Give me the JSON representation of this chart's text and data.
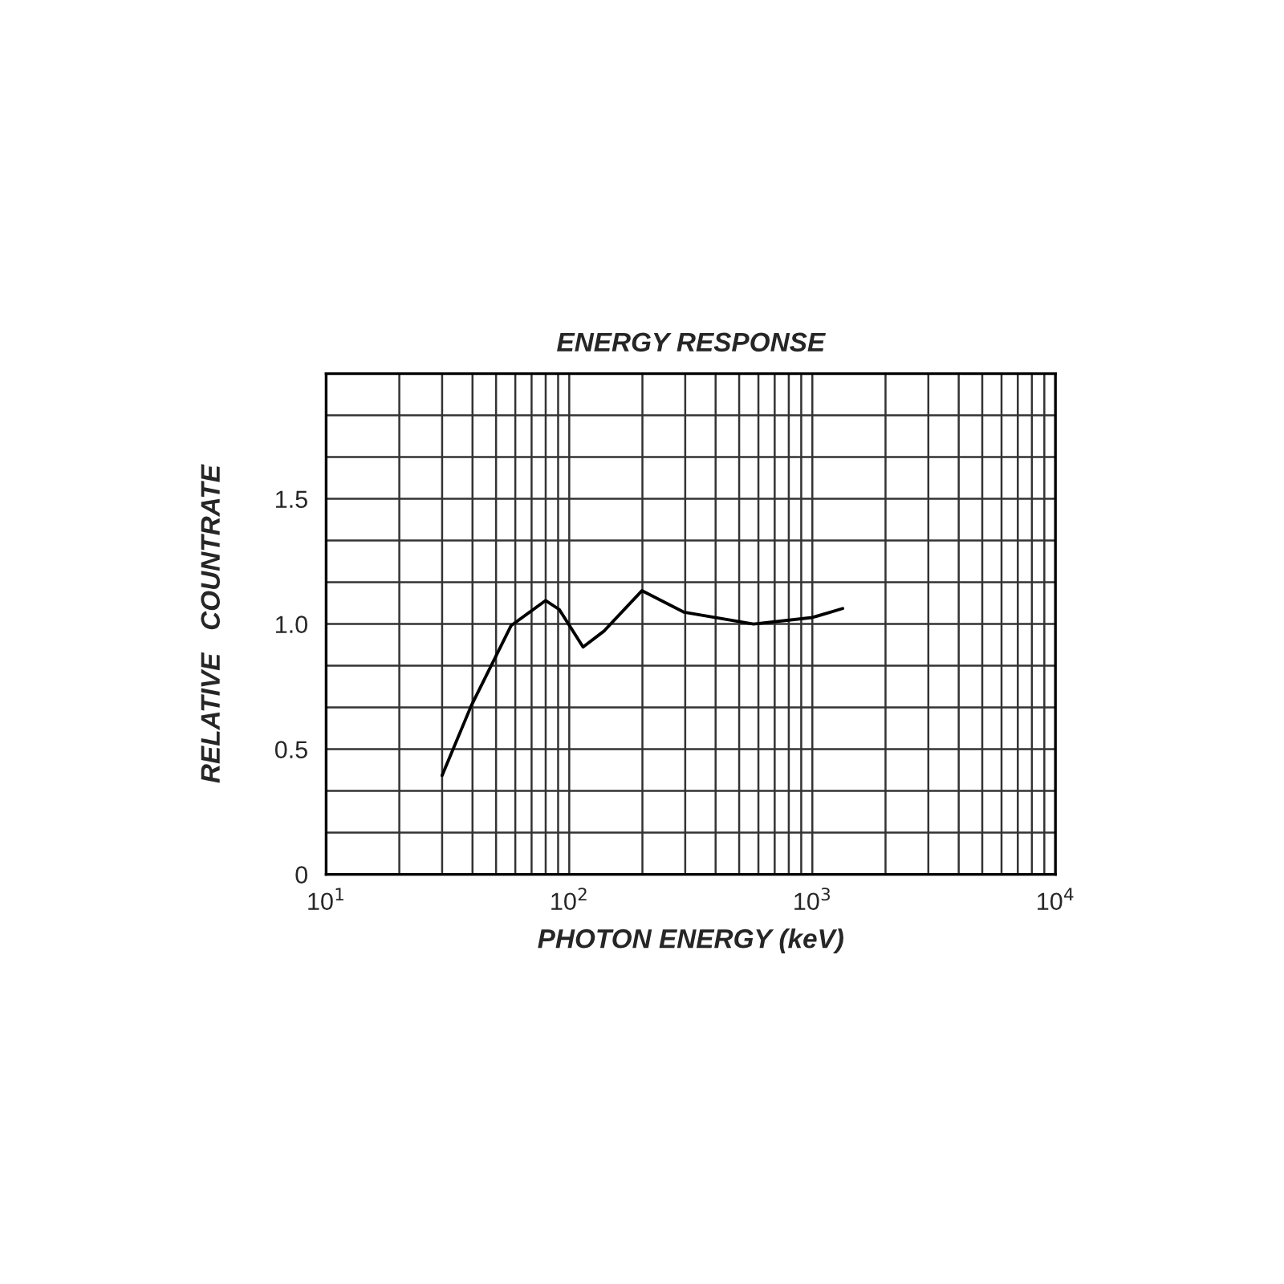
{
  "chart_data": {
    "type": "line",
    "title": "ENERGY RESPONSE",
    "xlabel": "PHOTON ENERGY (keV)",
    "ylabel": "RELATIVE   COUNTRATE",
    "x": [
      30,
      39.5,
      57.7,
      80,
      91,
      114,
      139,
      199,
      297,
      573,
      1000,
      1333
    ],
    "series": [
      {
        "color": "#000000",
        "values": [
          0.395,
          0.673,
          0.994,
          1.094,
          1.058,
          0.908,
          0.972,
          1.133,
          1.047,
          1.0,
          1.026,
          1.062
        ]
      }
    ],
    "log": "x",
    "xlim": [
      10,
      10000
    ],
    "ylim": [
      0,
      2.0
    ],
    "xticks": [
      {
        "value": 10,
        "label": "10$^{1}$"
      },
      {
        "value": 20,
        "label": null
      },
      {
        "value": 30,
        "label": null
      },
      {
        "value": 40,
        "label": null
      },
      {
        "value": 50,
        "label": null
      },
      {
        "value": 60,
        "label": null
      },
      {
        "value": 70,
        "label": null
      },
      {
        "value": 80,
        "label": null
      },
      {
        "value": 90,
        "label": null
      },
      {
        "value": 100,
        "label": "10$^{2}$"
      },
      {
        "value": 200,
        "label": null
      },
      {
        "value": 300,
        "label": null
      },
      {
        "value": 400,
        "label": null
      },
      {
        "value": 500,
        "label": null
      },
      {
        "value": 600,
        "label": null
      },
      {
        "value": 700,
        "label": null
      },
      {
        "value": 800,
        "label": null
      },
      {
        "value": 900,
        "label": null
      },
      {
        "value": 1000,
        "label": "10$^{3}$"
      },
      {
        "value": 2000,
        "label": null
      },
      {
        "value": 3000,
        "label": null
      },
      {
        "value": 4000,
        "label": null
      },
      {
        "value": 5000,
        "label": null
      },
      {
        "value": 6000,
        "label": null
      },
      {
        "value": 7000,
        "label": null
      },
      {
        "value": 8000,
        "label": null
      },
      {
        "value": 9000,
        "label": null
      },
      {
        "value": 10000,
        "label": "10$^{4}$"
      }
    ],
    "yticks": [
      0,
      {
        "value": 0.1667,
        "label": null
      },
      {
        "value": 0.3333,
        "label": null
      },
      0.5,
      {
        "value": 0.6667,
        "label": null
      },
      {
        "value": 0.8333,
        "label": null
      },
      {
        "value": 1.0,
        "label": "1.0"
      },
      {
        "value": 1.1667,
        "label": null
      },
      {
        "value": 1.3333,
        "label": null
      },
      1.5,
      {
        "value": 1.6667,
        "label": null
      },
      {
        "value": 1.8333,
        "label": null
      },
      {
        "value": 2.0,
        "label": null
      }
    ],
    "grid": true,
    "line_style": "solid",
    "marker": "none"
  }
}
